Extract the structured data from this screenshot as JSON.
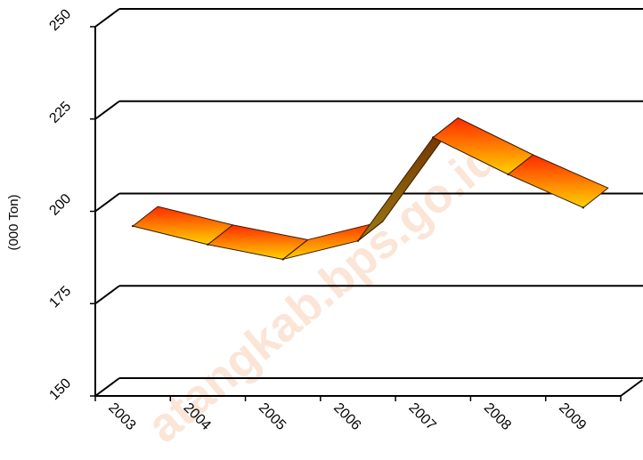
{
  "chart_data": {
    "type": "line",
    "style": "3d-ribbon",
    "title": "",
    "xlabel": "",
    "ylabel": "(000 Ton)",
    "categories": [
      "2003",
      "2004",
      "2005",
      "2006",
      "2007",
      "2008",
      "2009"
    ],
    "series": [
      {
        "values": [
          196,
          191,
          187,
          192,
          220,
          210,
          201
        ]
      }
    ],
    "ylim": [
      150,
      250
    ],
    "yticks": [
      "150",
      "175",
      "200",
      "225",
      "250"
    ],
    "grid": true,
    "legend": "none",
    "watermark": "atangkab.bps.go.id",
    "colors": {
      "ribbon_top": "#ff2a00",
      "ribbon_bottom": "#ffd200",
      "ribbon_side": "#8b3a00",
      "grid": "#000000"
    }
  }
}
